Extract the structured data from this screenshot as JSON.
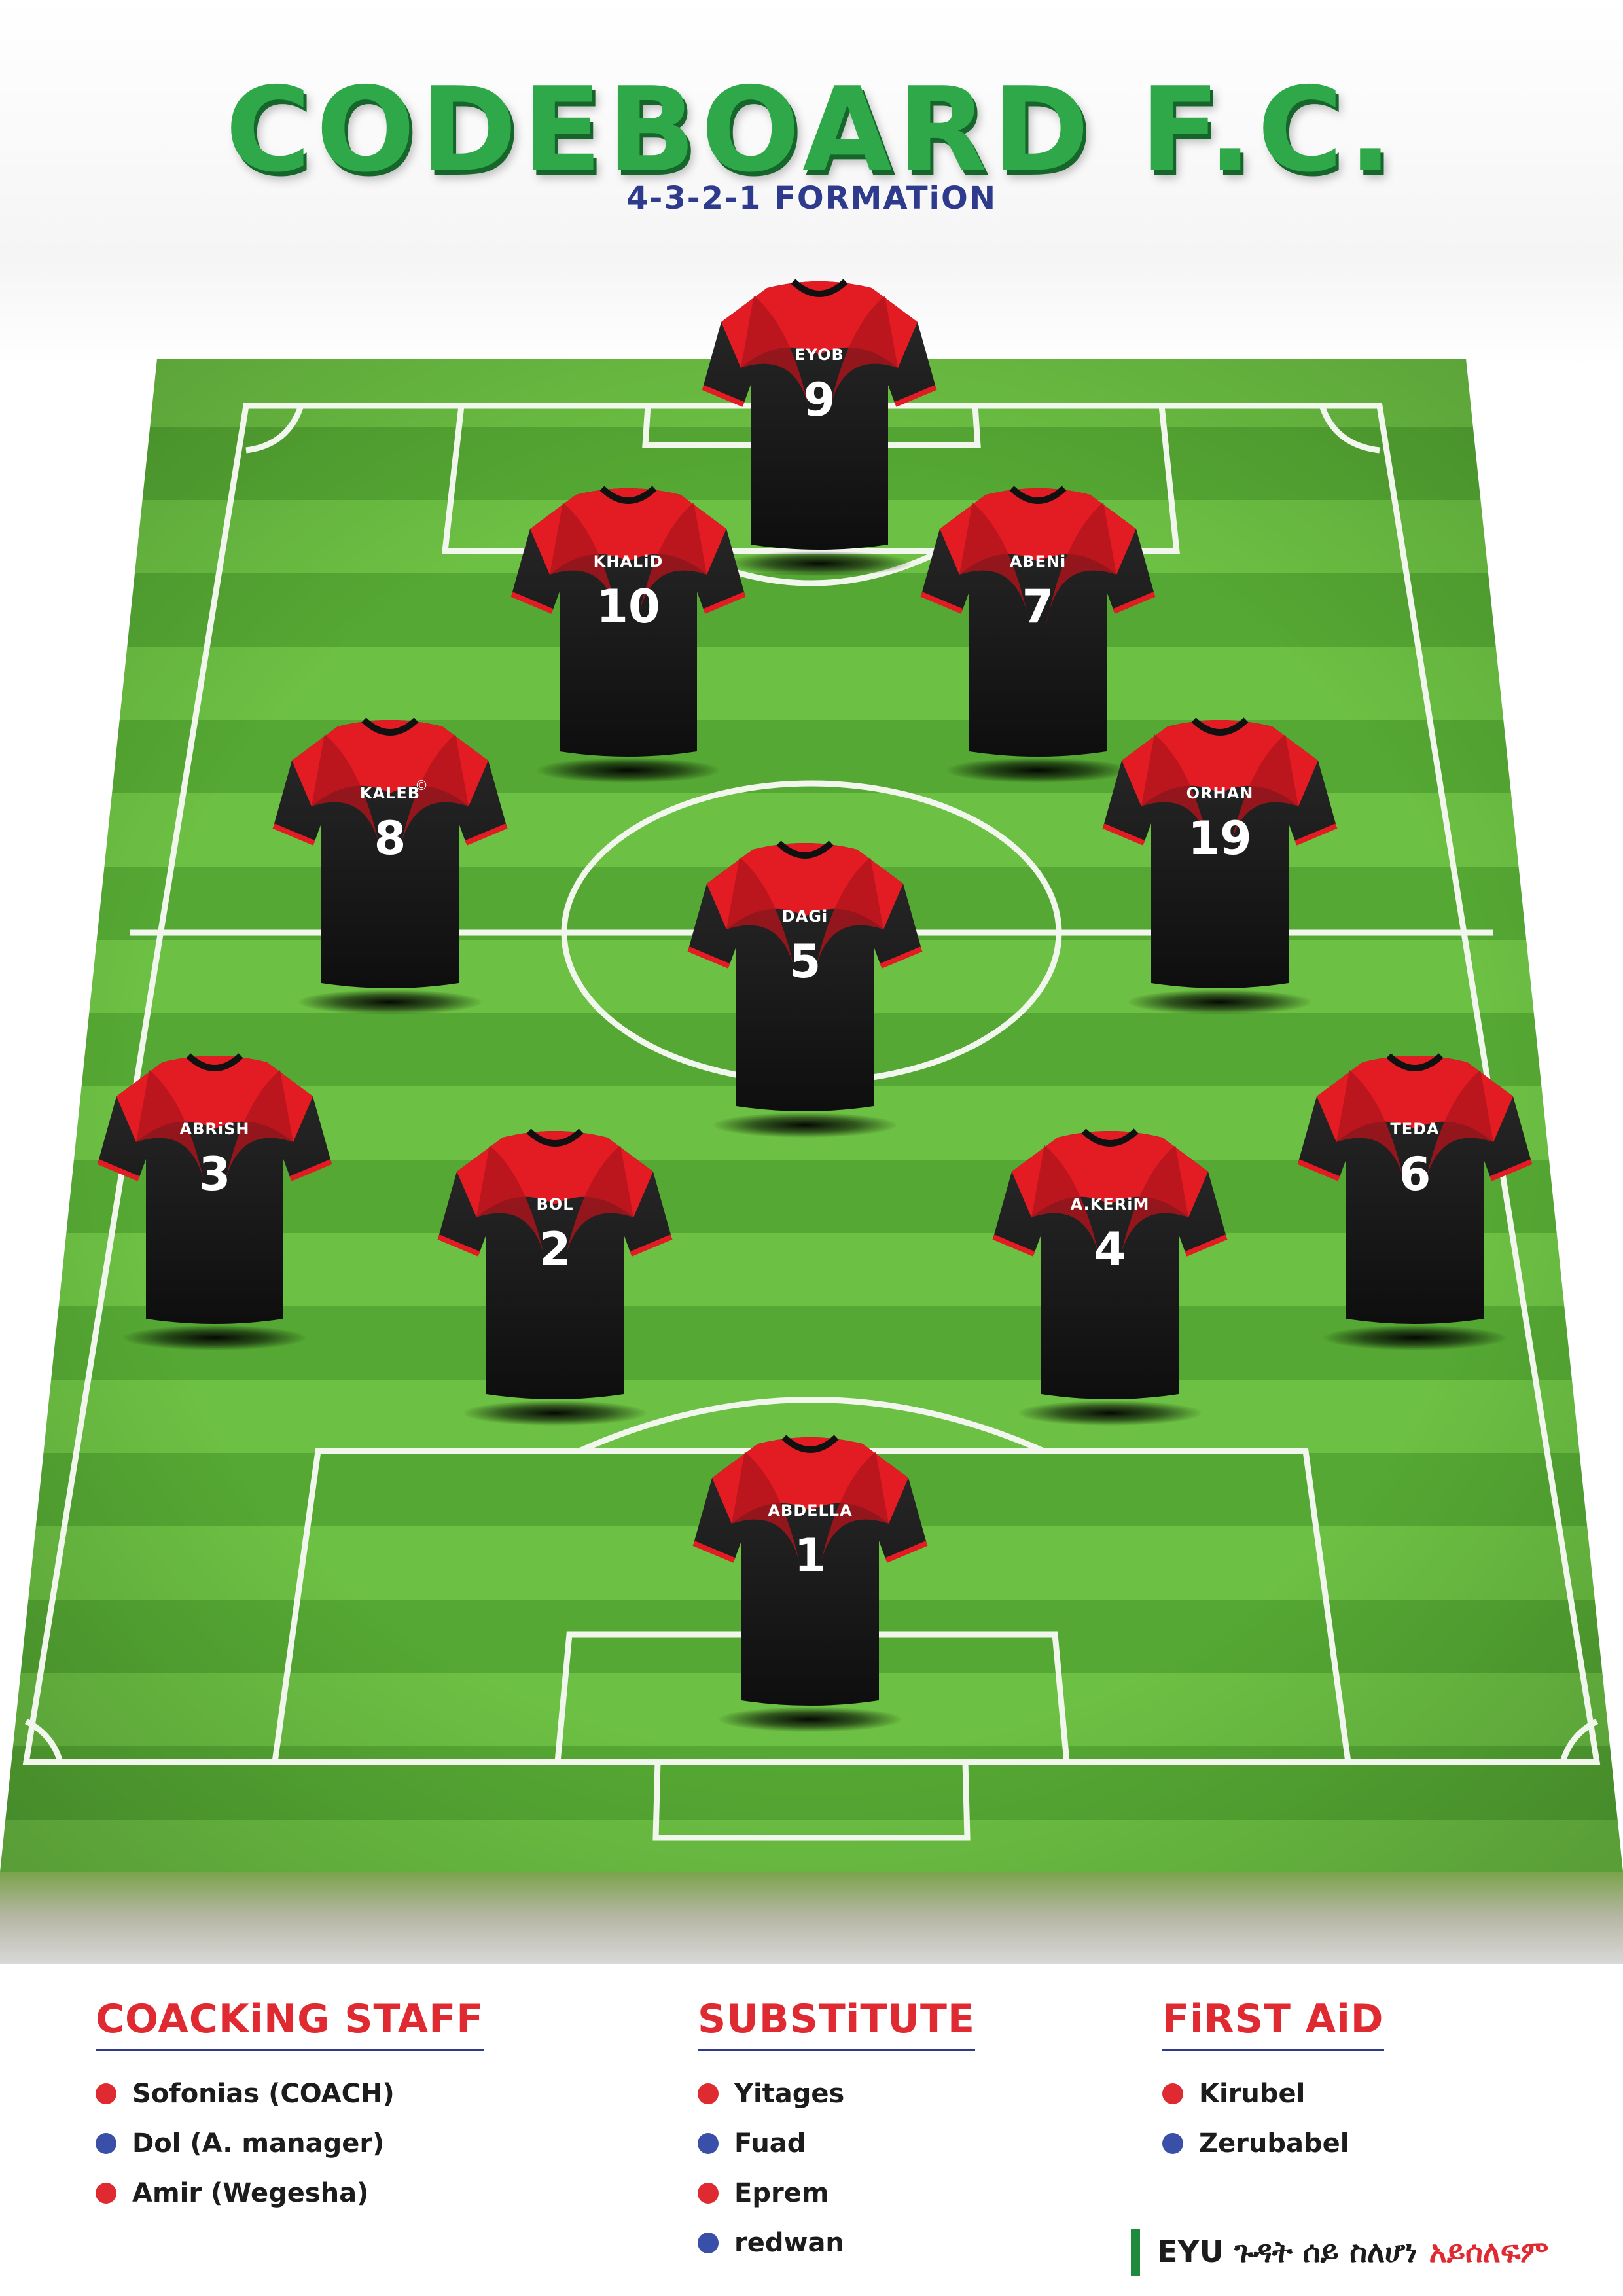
{
  "header": {
    "title": "CODEBOARD F.C.",
    "subtitle": "4-3-2-1 FORMATiON"
  },
  "colors": {
    "title_green": "#2fa84a",
    "subtitle_blue": "#2e3a8c",
    "jersey_black": "#141414",
    "jersey_red": "#e31b23",
    "dot_red": "#e02a32",
    "dot_blue": "#3a4fa8",
    "pitch_light": "#6cc043",
    "pitch_dark": "#4e9f2d"
  },
  "players": [
    {
      "name": "EYOB",
      "number": "9"
    },
    {
      "name": "KHALiD",
      "number": "10"
    },
    {
      "name": "ABENi",
      "number": "7"
    },
    {
      "name": "KALEB",
      "number": "8",
      "mark": "©"
    },
    {
      "name": "ORHAN",
      "number": "19"
    },
    {
      "name": "DAGi",
      "number": "5"
    },
    {
      "name": "ABRiSH",
      "number": "3"
    },
    {
      "name": "BOL",
      "number": "2"
    },
    {
      "name": "A.KERiM",
      "number": "4"
    },
    {
      "name": "TEDA",
      "number": "6"
    },
    {
      "name": "ABDELLA",
      "number": "1"
    }
  ],
  "coaching": {
    "title": "COACKiNG STAFF",
    "items": [
      {
        "label": "Sofonias (COACH)",
        "dot": "red"
      },
      {
        "label": "Dol (A. manager)",
        "dot": "blue"
      },
      {
        "label": "Amir  (Wegesha)",
        "dot": "red"
      }
    ]
  },
  "substitute": {
    "title": "SUBSTiTUTE",
    "items": [
      {
        "label": "Yitages",
        "dot": "red"
      },
      {
        "label": "Fuad",
        "dot": "blue"
      },
      {
        "label": "Eprem",
        "dot": "red"
      },
      {
        "label": "redwan",
        "dot": "blue"
      }
    ]
  },
  "first_aid": {
    "title": "FiRST AiD",
    "items": [
      {
        "label": "Kirubel",
        "dot": "red"
      },
      {
        "label": "Zerubabel",
        "dot": "blue"
      }
    ]
  },
  "footer": {
    "part1": "EYU ጉዳት ሰይ ስለሆነ",
    "part2": "አይሰለፍም"
  }
}
